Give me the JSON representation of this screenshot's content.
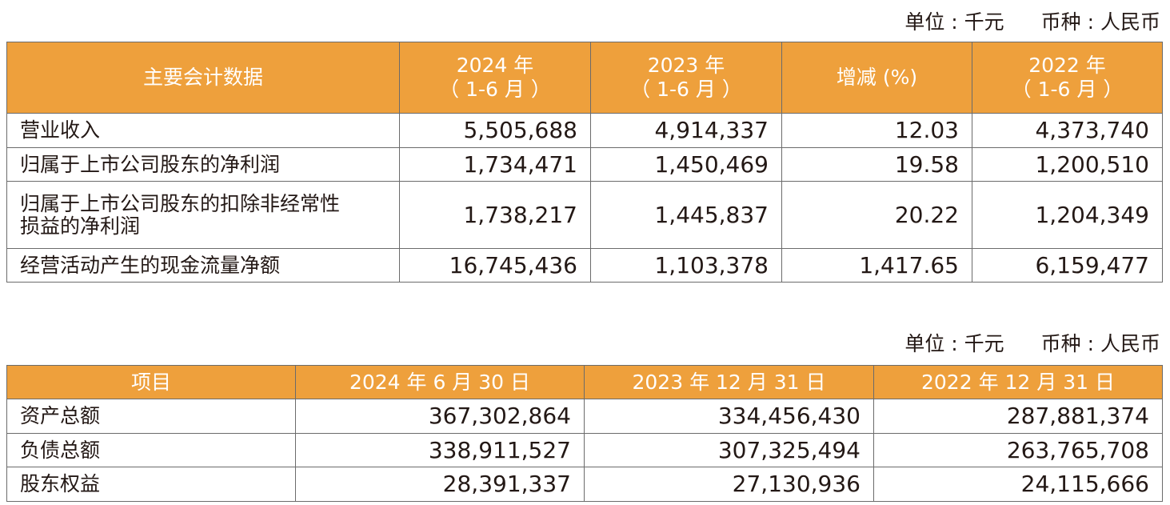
{
  "table1": {
    "unit_label": "单位 : 千元",
    "currency_label": "币种 : 人民币",
    "headers": [
      {
        "line1": "主要会计数据",
        "line2": ""
      },
      {
        "line1": "2024 年",
        "line2": "（ 1-6 月 ）"
      },
      {
        "line1": "2023 年",
        "line2": "（ 1-6 月 ）"
      },
      {
        "line1": "增减 (%)",
        "line2": ""
      },
      {
        "line1": "2022 年",
        "line2": "（ 1-6 月 ）"
      }
    ],
    "rows": [
      {
        "label": "营业收入",
        "label2": "",
        "v2024": "5,505,688",
        "v2023": "4,914,337",
        "change": "12.03",
        "v2022": "4,373,740"
      },
      {
        "label": "归属于上市公司股东的净利润",
        "label2": "",
        "v2024": "1,734,471",
        "v2023": "1,450,469",
        "change": "19.58",
        "v2022": "1,200,510"
      },
      {
        "label": "归属于上市公司股东的扣除非经常性",
        "label2": "损益的净利润",
        "v2024": "1,738,217",
        "v2023": "1,445,837",
        "change": "20.22",
        "v2022": "1,204,349"
      },
      {
        "label": "经营活动产生的现金流量净额",
        "label2": "",
        "v2024": "16,745,436",
        "v2023": "1,103,378",
        "change": "1,417.65",
        "v2022": "6,159,477"
      }
    ]
  },
  "table2": {
    "unit_label": "单位 : 千元",
    "currency_label": "币种 : 人民币",
    "headers": [
      "项目",
      "2024 年 6 月 30 日",
      "2023 年 12 月 31 日",
      "2022 年 12 月 31 日"
    ],
    "rows": [
      {
        "label": "资产总额",
        "c1": "367,302,864",
        "c2": "334,456,430",
        "c3": "287,881,374"
      },
      {
        "label": "负债总额",
        "c1": "338,911,527",
        "c2": "307,325,494",
        "c3": "263,765,708"
      },
      {
        "label": "股东权益",
        "c1": "28,391,337",
        "c2": "27,130,936",
        "c3": "24,115,666"
      }
    ]
  },
  "colors": {
    "header_bg": "#eea03c",
    "header_text": "#ffffff",
    "border": "#6b6b6b",
    "text": "#231815"
  }
}
